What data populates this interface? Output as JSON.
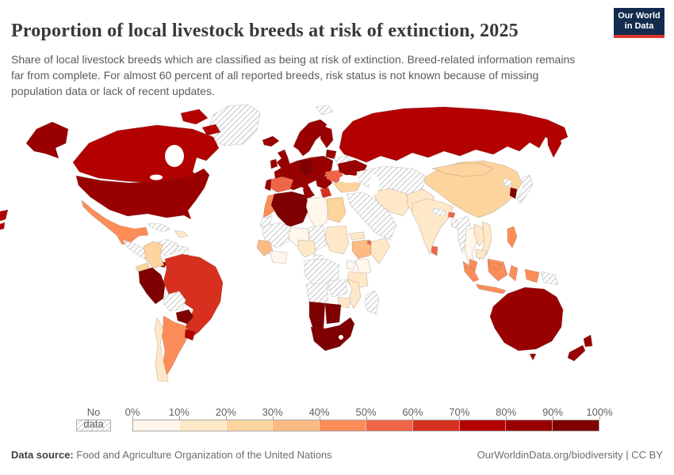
{
  "header": {
    "title": "Proportion of local livestock breeds at risk of extinction, 2025",
    "subtitle": "Share of local livestock breeds which are classified as being at risk of extinction. Breed-related information remains far from complete. For almost 60 percent of all reported breeds, risk status is not known because of missing population data or lack of recent updates."
  },
  "logo": {
    "line1": "Our World",
    "line2": "in Data",
    "bg_color": "#122b4e",
    "accent_color": "#d8352e"
  },
  "chart_data": {
    "type": "choropleth",
    "title": "Proportion of local livestock breeds at risk of extinction, 2025",
    "unit": "%",
    "legend": {
      "no_data_label": "No data",
      "ticks": [
        "0%",
        "10%",
        "20%",
        "30%",
        "40%",
        "50%",
        "60%",
        "70%",
        "80%",
        "90%",
        "100%"
      ],
      "colors": [
        "#FFF7EC",
        "#FEE8C8",
        "#FDD49E",
        "#FDBB84",
        "#FC8D59",
        "#EF6548",
        "#D7301F",
        "#B30000",
        "#990000",
        "#7F0000"
      ],
      "no_data_pattern": "diagonal-hatch"
    },
    "countries": {
      "greenland": null,
      "canada": 75,
      "united-states": 85,
      "mexico": 45,
      "central-america": null,
      "panama-costa-rica": 85,
      "cuba": null,
      "hispaniola": 15,
      "colombia": 25,
      "venezuela": null,
      "guyanas": null,
      "ecuador": 25,
      "peru": 95,
      "brazil": 65,
      "bolivia": null,
      "paraguay": 95,
      "uruguay": 75,
      "argentina": 45,
      "chile": 15,
      "iceland": 85,
      "united-kingdom": 85,
      "ireland": 85,
      "scandinavia": 85,
      "finland": 85,
      "baltics": 85,
      "belarus": null,
      "europe-core": 85,
      "germany": 95,
      "spain": 55,
      "portugal": 85,
      "italy": 85,
      "balkans": 85,
      "romania-bulgaria": 55,
      "greece": 65,
      "ukraine": 85,
      "svalbard": null,
      "russia": 75,
      "central-asia": null,
      "turkey": 25,
      "middle-east": null,
      "iran": 15,
      "afghanistan-pakistan": 15,
      "india": 15,
      "nepal": null,
      "bhutan": 55,
      "bangladesh": null,
      "china": 25,
      "mongolia": 25,
      "north-korea": null,
      "south-korea": 95,
      "japan": null,
      "myanmar": null,
      "thailand": 5,
      "laos": 15,
      "vietnam": 15,
      "cambodia": 15,
      "sri-lanka": 55,
      "philippines": 45,
      "malaysia": 45,
      "indonesia": 45,
      "papua-new-guinea": null,
      "australia": 85,
      "new-zealand": 85,
      "morocco": 45,
      "western-sahara": null,
      "algeria": 95,
      "tunisia": 85,
      "libya": 5,
      "egypt": 25,
      "mauritania-mali": null,
      "niger": 5,
      "chad": null,
      "sudan": 15,
      "senegal-guinea": 35,
      "ghana-ivory-coast": 5,
      "nigeria": 15,
      "cameroon-gabon": null,
      "ethiopia": 35,
      "eritrea": 15,
      "djibouti": 55,
      "somalia": 15,
      "kenya": 5,
      "uganda": 5,
      "tanzania": 15,
      "drc": null,
      "angola": null,
      "zambia": null,
      "mozambique": 15,
      "zimbabwe": 15,
      "namibia": 95,
      "botswana": 95,
      "south-africa": 95,
      "madagascar": null
    }
  },
  "footer": {
    "source_label": "Data source:",
    "source_text": "Food and Agriculture Organization of the United Nations",
    "link_text": "OurWorldinData.org/biodiversity",
    "license_suffix": " | CC BY"
  }
}
